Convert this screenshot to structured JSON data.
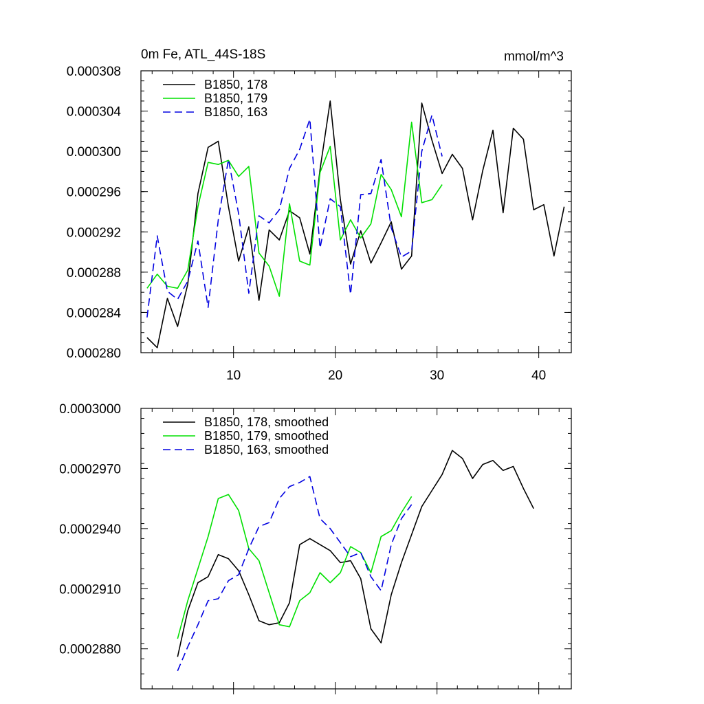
{
  "chart_data": [
    {
      "type": "line",
      "title": "0m Fe, ATL_44S-18S",
      "units": "mmol/m^3",
      "xlim": [
        0.9,
        43.2
      ],
      "ylim": [
        0.00028,
        0.000308
      ],
      "xticks": [
        10,
        20,
        30,
        40
      ],
      "xtick_labels": [
        "10",
        "20",
        "30",
        "40"
      ],
      "yticks": [
        0.00028,
        0.000284,
        0.000288,
        0.000292,
        0.000296,
        0.0003,
        0.000304,
        0.000308
      ],
      "ytick_labels": [
        "0.000280",
        "0.000284",
        "0.000288",
        "0.000292",
        "0.000296",
        "0.000300",
        "0.000304",
        "0.000308"
      ],
      "legend_position": "top-left",
      "series": [
        {
          "name": "B1850, 178",
          "color": "#000000",
          "dash": "solid",
          "x": [
            1.5,
            2.5,
            3.5,
            4.5,
            5.5,
            6.5,
            7.5,
            8.5,
            9.5,
            10.5,
            11.5,
            12.5,
            13.5,
            14.5,
            15.5,
            16.5,
            17.5,
            18.5,
            19.5,
            20.5,
            21.5,
            22.5,
            23.5,
            24.5,
            25.5,
            26.5,
            27.5,
            28.5,
            29.5,
            30.5,
            31.5,
            32.5,
            33.5,
            34.5,
            35.5,
            36.5,
            37.5,
            38.5,
            39.5,
            40.5,
            41.5,
            42.5
          ],
          "y": [
            0.0002815,
            0.0002805,
            0.0002854,
            0.0002826,
            0.0002868,
            0.0002958,
            0.0003004,
            0.000301,
            0.0002945,
            0.0002891,
            0.0002925,
            0.0002852,
            0.0002922,
            0.0002912,
            0.0002941,
            0.0002934,
            0.0002898,
            0.0002982,
            0.000305,
            0.0002952,
            0.0002888,
            0.0002921,
            0.0002889,
            0.0002909,
            0.000293,
            0.0002883,
            0.0002896,
            0.0003048,
            0.0003011,
            0.0002978,
            0.0002997,
            0.0002983,
            0.0002932,
            0.0002981,
            0.0003021,
            0.0002939,
            0.0003023,
            0.0003012,
            0.0002942,
            0.0002947,
            0.0002896,
            0.0002945
          ]
        },
        {
          "name": "B1850, 179",
          "color": "#00e000",
          "dash": "solid",
          "x": [
            1.5,
            2.5,
            3.5,
            4.5,
            5.5,
            6.5,
            7.5,
            8.5,
            9.5,
            10.5,
            11.5,
            12.5,
            13.5,
            14.5,
            15.5,
            16.5,
            17.5,
            18.5,
            19.5,
            20.5,
            21.5,
            22.5,
            23.5,
            24.5,
            25.5,
            26.5,
            27.5,
            28.5,
            29.5,
            30.5
          ],
          "y": [
            0.0002864,
            0.0002878,
            0.0002866,
            0.0002864,
            0.0002882,
            0.0002945,
            0.0002989,
            0.0002987,
            0.0002991,
            0.0002975,
            0.0002985,
            0.0002899,
            0.0002886,
            0.0002856,
            0.0002948,
            0.0002891,
            0.0002887,
            0.0002979,
            0.0003005,
            0.0002912,
            0.0002932,
            0.0002914,
            0.0002928,
            0.0002977,
            0.0002962,
            0.0002935,
            0.0003029,
            0.0002949,
            0.0002952,
            0.0002967
          ]
        },
        {
          "name": "B1850, 163",
          "color": "#0000e0",
          "dash": "dashed",
          "x": [
            1.5,
            2.5,
            3.5,
            4.5,
            5.5,
            6.5,
            7.5,
            8.5,
            9.5,
            10.5,
            11.5,
            12.5,
            13.5,
            14.5,
            15.5,
            16.5,
            17.5,
            18.5,
            19.5,
            20.5,
            21.5,
            22.5,
            23.5,
            24.5,
            25.5,
            26.5,
            27.5,
            28.5,
            29.5,
            30.5
          ],
          "y": [
            0.0002835,
            0.0002916,
            0.0002861,
            0.0002853,
            0.0002871,
            0.0002911,
            0.0002845,
            0.0002932,
            0.0002992,
            0.0002938,
            0.0002859,
            0.0002936,
            0.0002929,
            0.0002942,
            0.0002983,
            0.0003002,
            0.0003032,
            0.0002904,
            0.0002953,
            0.0002945,
            0.0002858,
            0.0002957,
            0.0002958,
            0.0002992,
            0.0002924,
            0.0002895,
            0.0002901,
            0.0003,
            0.0003036,
            0.0002995
          ]
        }
      ]
    },
    {
      "type": "line",
      "xlim": [
        0.9,
        43.2
      ],
      "ylim": [
        0.000286,
        0.0003
      ],
      "xticks": [
        10,
        20,
        30,
        40
      ],
      "yticks": [
        0.000288,
        0.000291,
        0.000294,
        0.000297,
        0.0003
      ],
      "ytick_labels": [
        "0.0002880",
        "0.0002910",
        "0.0002940",
        "0.0002970",
        "0.0003000"
      ],
      "legend_position": "top-left",
      "series": [
        {
          "name": "B1850, 178, smoothed",
          "color": "#000000",
          "dash": "solid",
          "x": [
            4.5,
            5.5,
            6.5,
            7.5,
            8.5,
            9.5,
            10.5,
            11.5,
            12.5,
            13.5,
            14.5,
            15.5,
            16.5,
            17.5,
            18.5,
            19.5,
            20.5,
            21.5,
            22.5,
            23.5,
            24.5,
            25.5,
            26.5,
            27.5,
            28.5,
            29.5,
            30.5,
            31.5,
            32.5,
            33.5,
            34.5,
            35.5,
            36.5,
            37.5,
            38.5,
            39.5
          ],
          "y": [
            0.0002876,
            0.0002899,
            0.0002913,
            0.0002916,
            0.0002927,
            0.0002925,
            0.0002919,
            0.0002907,
            0.0002894,
            0.0002892,
            0.0002893,
            0.0002903,
            0.0002932,
            0.0002935,
            0.0002932,
            0.0002929,
            0.0002923,
            0.0002924,
            0.0002915,
            0.000289,
            0.0002883,
            0.0002907,
            0.0002923,
            0.0002937,
            0.0002951,
            0.0002959,
            0.0002967,
            0.0002979,
            0.0002975,
            0.0002965,
            0.0002972,
            0.0002974,
            0.0002969,
            0.0002971,
            0.000296,
            0.000295
          ]
        },
        {
          "name": "B1850, 179, smoothed",
          "color": "#00e000",
          "dash": "solid",
          "x": [
            4.5,
            5.5,
            6.5,
            7.5,
            8.5,
            9.5,
            10.5,
            11.5,
            12.5,
            13.5,
            14.5,
            15.5,
            16.5,
            17.5,
            18.5,
            19.5,
            20.5,
            21.5,
            22.5,
            23.5,
            24.5,
            25.5,
            26.5,
            27.5
          ],
          "y": [
            0.0002885,
            0.0002904,
            0.000292,
            0.0002936,
            0.0002955,
            0.0002957,
            0.0002949,
            0.000293,
            0.0002924,
            0.0002908,
            0.0002892,
            0.0002891,
            0.0002904,
            0.0002908,
            0.0002918,
            0.0002913,
            0.0002918,
            0.0002931,
            0.0002928,
            0.0002918,
            0.0002936,
            0.0002939,
            0.0002948,
            0.0002956
          ]
        },
        {
          "name": "B1850, 163, smoothed",
          "color": "#0000e0",
          "dash": "dashed",
          "x": [
            4.5,
            5.5,
            6.5,
            7.5,
            8.5,
            9.5,
            10.5,
            11.5,
            12.5,
            13.5,
            14.5,
            15.5,
            16.5,
            17.5,
            18.5,
            19.5,
            20.5,
            21.5,
            22.5,
            23.5,
            24.5,
            25.5,
            26.5,
            27.5
          ],
          "y": [
            0.0002869,
            0.0002881,
            0.0002892,
            0.0002904,
            0.0002905,
            0.0002914,
            0.0002917,
            0.000293,
            0.0002941,
            0.0002943,
            0.0002955,
            0.0002961,
            0.0002963,
            0.0002966,
            0.0002945,
            0.000294,
            0.0002933,
            0.0002926,
            0.0002928,
            0.0002916,
            0.0002909,
            0.0002932,
            0.0002945,
            0.0002952
          ]
        }
      ]
    }
  ]
}
